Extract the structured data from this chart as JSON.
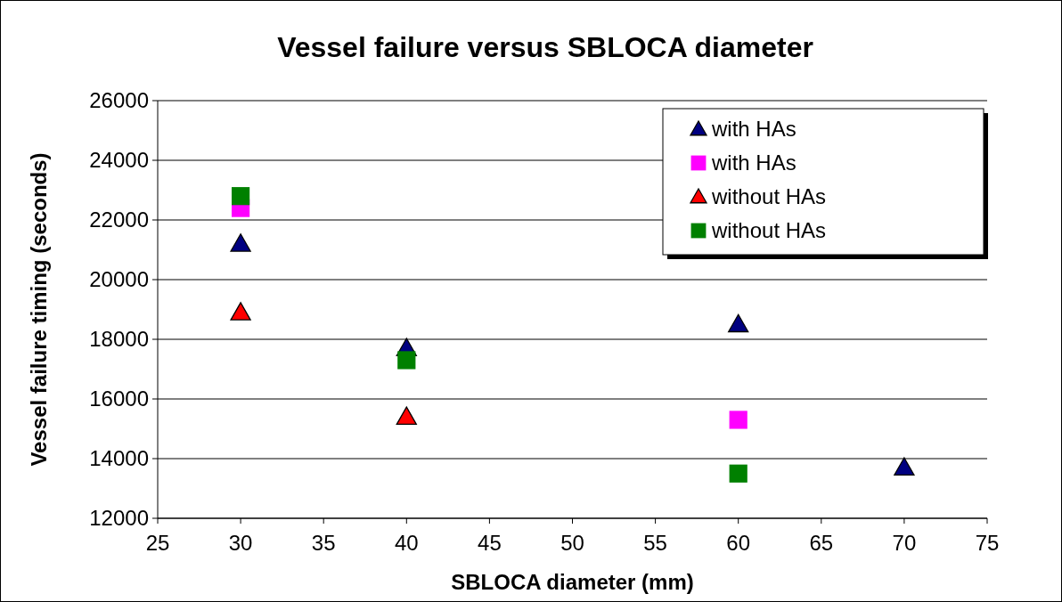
{
  "chart_data": {
    "type": "scatter",
    "title": "Vessel failure versus SBLOCA diameter",
    "xlabel": "SBLOCA diameter (mm)",
    "ylabel": "Vessel failure timing (seconds)",
    "xlim": [
      25,
      75
    ],
    "xticks": [
      25,
      30,
      35,
      40,
      45,
      50,
      55,
      60,
      65,
      70,
      75
    ],
    "ylim": [
      12000,
      26000
    ],
    "yticks": [
      12000,
      14000,
      16000,
      18000,
      20000,
      22000,
      24000,
      26000
    ],
    "grid": "y",
    "legend": "top right",
    "series": [
      {
        "name": "with HAs",
        "color": "#000080",
        "marker": "triangle",
        "x": [
          30,
          40,
          60,
          70
        ],
        "values": [
          21200,
          17700,
          18500,
          13700
        ]
      },
      {
        "name": "with HAs",
        "color": "#ff00ff",
        "marker": "square",
        "x": [
          30,
          60
        ],
        "values": [
          22400,
          15300
        ]
      },
      {
        "name": "without HAs",
        "color": "#ff0000",
        "marker": "triangle",
        "x": [
          30,
          40
        ],
        "values": [
          18900,
          15400
        ]
      },
      {
        "name": "without HAs",
        "color": "#008000",
        "marker": "square",
        "x": [
          30,
          40,
          60
        ],
        "values": [
          22800,
          17300,
          13500
        ]
      }
    ]
  }
}
